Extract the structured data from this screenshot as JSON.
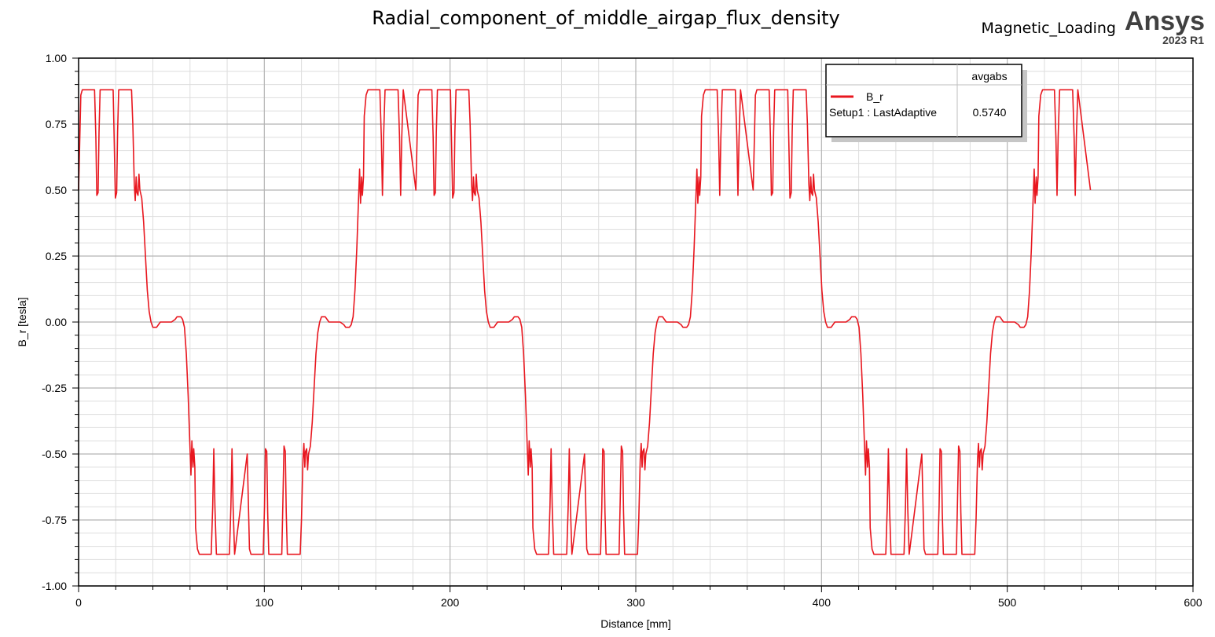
{
  "header": {
    "brand": "Ansys",
    "version": "2023 R1"
  },
  "chart_data": {
    "type": "line",
    "title": "Radial_component_of_middle_airgap_flux_density",
    "subtitle": "Magnetic_Loading",
    "xlabel": "Distance [mm]",
    "ylabel": "B_r [tesla]",
    "xlim": [
      0,
      600
    ],
    "ylim": [
      -1.0,
      1.0
    ],
    "x_ticks": [
      "0",
      "100",
      "200",
      "300",
      "400",
      "500",
      "600"
    ],
    "y_ticks": [
      "1.00",
      "0.75",
      "0.50",
      "0.25",
      "0.00",
      "-0.25",
      "-0.50",
      "-0.75",
      "-1.00"
    ],
    "grid": true,
    "legend_position": "top-right",
    "legend": {
      "column_header": "avgabs",
      "entries": [
        {
          "name": "B_r",
          "context": "Setup1 : LastAdaptive",
          "value": "0.5740"
        }
      ]
    },
    "series": [
      {
        "name": "B_r",
        "color": "#e8171f",
        "period_mm": 181.6,
        "x_end": 545,
        "points": [
          [
            0,
            0.5
          ],
          [
            0.4,
            0.62
          ],
          [
            1.2,
            0.86
          ],
          [
            2,
            0.88
          ],
          [
            8.6,
            0.88
          ],
          [
            9.3,
            0.7
          ],
          [
            9.8,
            0.48
          ],
          [
            10.5,
            0.49
          ],
          [
            11,
            0.72
          ],
          [
            11.6,
            0.88
          ],
          [
            18.6,
            0.88
          ],
          [
            19.2,
            0.68
          ],
          [
            19.8,
            0.47
          ],
          [
            20.5,
            0.49
          ],
          [
            21,
            0.72
          ],
          [
            21.6,
            0.88
          ],
          [
            22,
            0.88
          ],
          [
            28.5,
            0.88
          ],
          [
            29.2,
            0.75
          ],
          [
            30,
            0.52
          ],
          [
            30.5,
            0.46
          ],
          [
            31,
            0.55
          ],
          [
            31.4,
            0.49
          ],
          [
            32,
            0.48
          ],
          [
            32.5,
            0.56
          ],
          [
            33,
            0.5
          ],
          [
            34,
            0.47
          ],
          [
            35,
            0.38
          ],
          [
            36,
            0.25
          ],
          [
            37,
            0.12
          ],
          [
            38,
            0.04
          ],
          [
            39,
            0.0
          ],
          [
            40,
            -0.02
          ],
          [
            42,
            -0.02
          ],
          [
            44,
            0.0
          ],
          [
            50,
            0.0
          ],
          [
            52,
            0.01
          ],
          [
            53,
            0.02
          ],
          [
            55,
            0.02
          ],
          [
            56,
            0.01
          ],
          [
            57,
            -0.02
          ],
          [
            58,
            -0.12
          ],
          [
            59,
            -0.28
          ],
          [
            60,
            -0.48
          ],
          [
            60.5,
            -0.58
          ],
          [
            61,
            -0.45
          ],
          [
            61.6,
            -0.55
          ],
          [
            62,
            -0.48
          ],
          [
            62.6,
            -0.55
          ],
          [
            63,
            -0.78
          ],
          [
            64,
            -0.86
          ],
          [
            65,
            -0.88
          ],
          [
            71.4,
            -0.88
          ],
          [
            72.2,
            -0.7
          ],
          [
            72.8,
            -0.48
          ],
          [
            73.4,
            -0.7
          ],
          [
            74.2,
            -0.88
          ],
          [
            81.2,
            -0.88
          ],
          [
            82,
            -0.7
          ],
          [
            82.6,
            -0.48
          ],
          [
            83.2,
            -0.7
          ],
          [
            84,
            -0.88
          ],
          [
            91.2,
            -0.88
          ],
          [
            92,
            -0.7
          ],
          [
            92.6,
            -0.48
          ],
          [
            93.2,
            -0.7
          ],
          [
            94,
            -0.88
          ],
          [
            101.2,
            -0.88
          ],
          [
            102,
            -0.7
          ],
          [
            102.6,
            -0.48
          ],
          [
            103.2,
            -0.7
          ],
          [
            104,
            -0.88
          ],
          [
            110.5,
            -0.88
          ],
          [
            111.5,
            -0.72
          ],
          [
            112.2,
            -0.48
          ],
          [
            112.9,
            -0.72
          ],
          [
            113.8,
            -0.88
          ],
          [
            120,
            -0.88
          ],
          [
            120.8,
            -0.75
          ],
          [
            121.5,
            -0.55
          ],
          [
            122,
            -0.48
          ],
          [
            122.5,
            -0.54
          ],
          [
            123,
            -0.47
          ],
          [
            124,
            -0.35
          ],
          [
            125,
            -0.2
          ],
          [
            126,
            -0.08
          ],
          [
            127,
            0.0
          ],
          [
            128,
            0.02
          ],
          [
            130,
            0.02
          ],
          [
            131,
            0.0
          ],
          [
            138,
            0.0
          ],
          [
            139,
            -0.01
          ],
          [
            141,
            -0.02
          ],
          [
            142.5,
            -0.01
          ],
          [
            143.5,
            0.02
          ]
        ]
      }
    ]
  }
}
